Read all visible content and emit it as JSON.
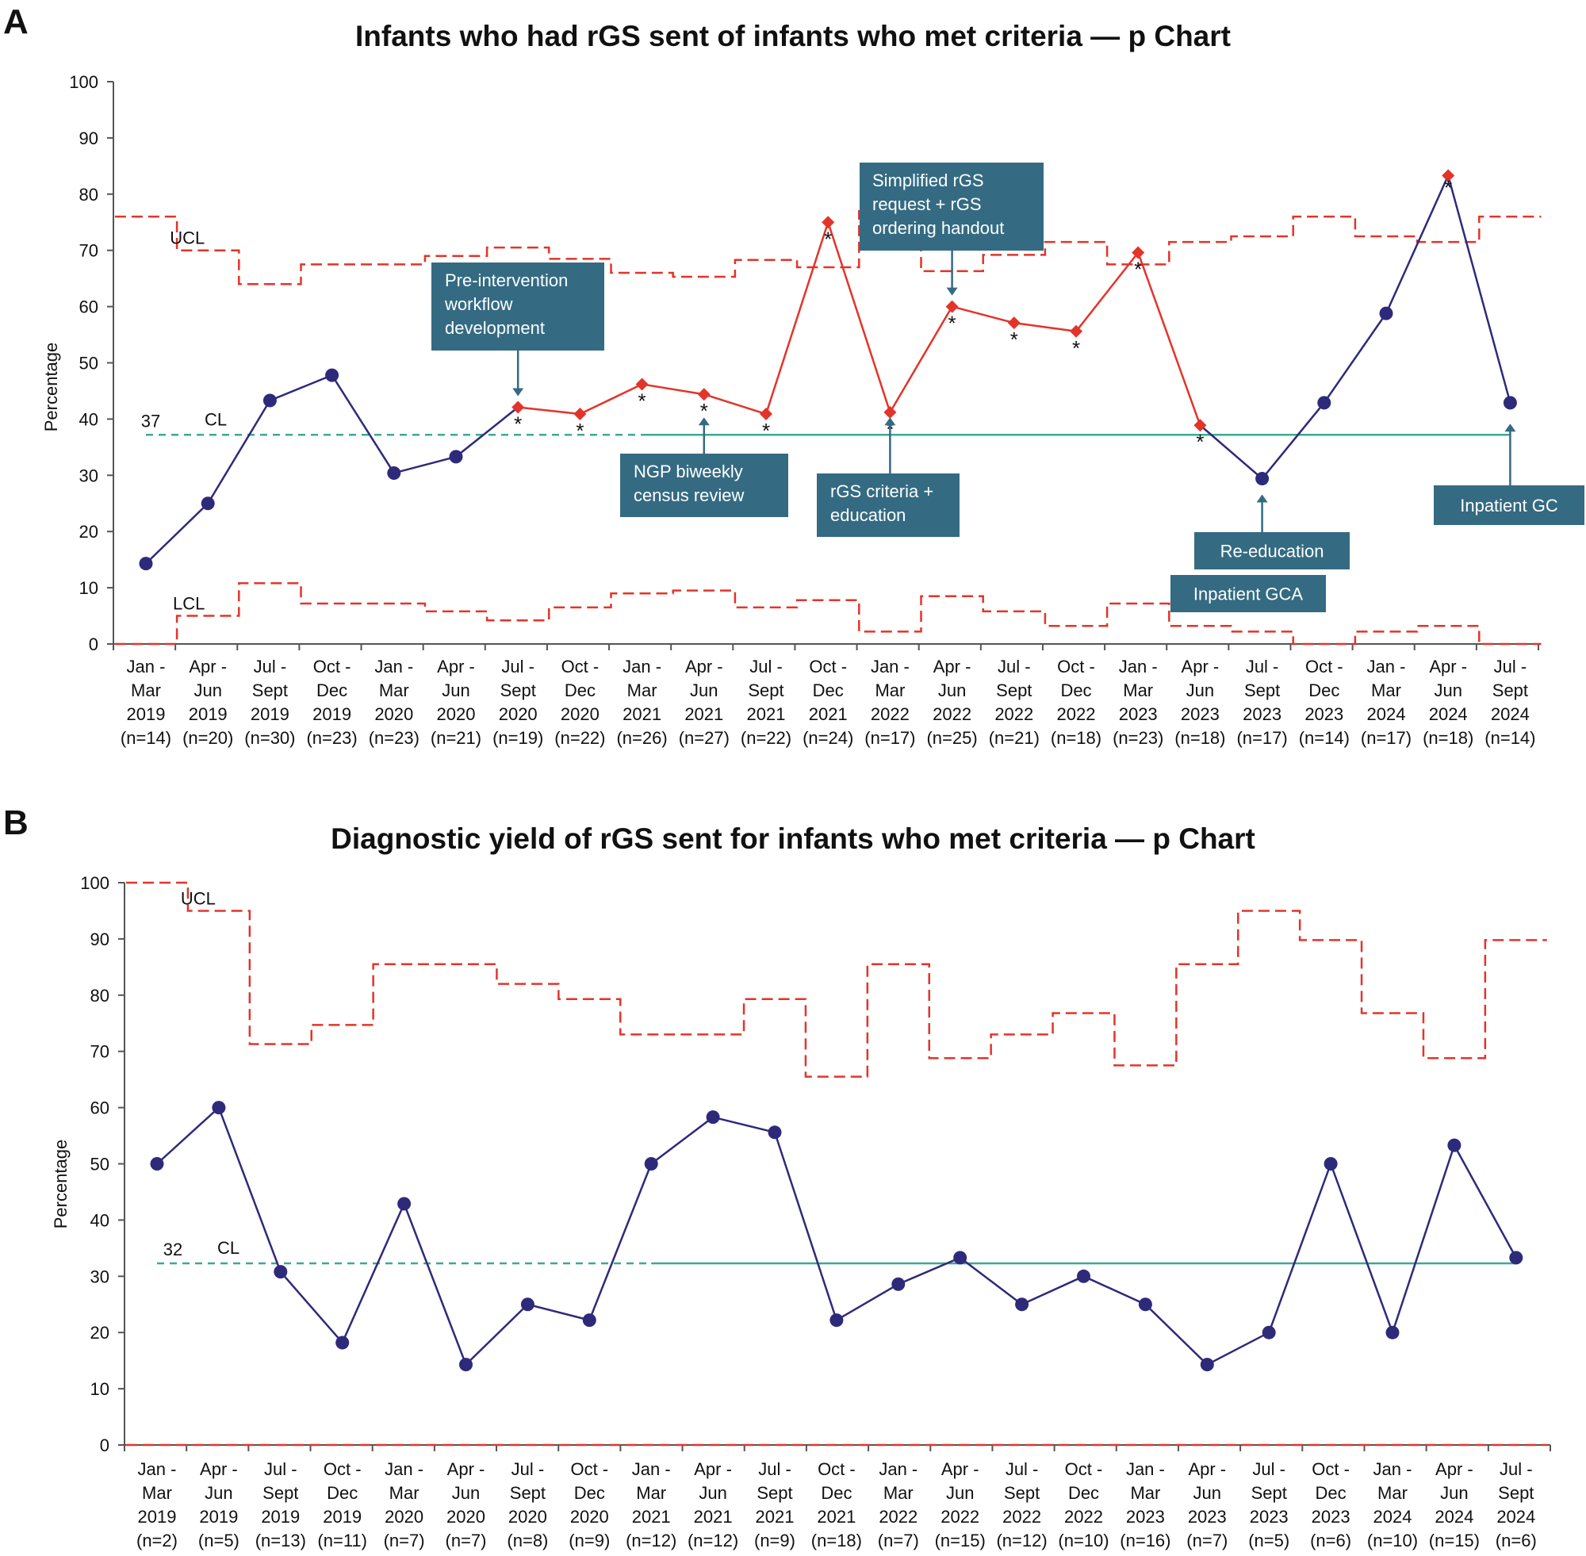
{
  "chart_data": [
    {
      "panel": "A",
      "type": "line",
      "title": "Infants who had rGS sent of infants who met criteria — p Chart",
      "ylabel": "Percentage",
      "ylim": [
        0,
        100
      ],
      "yticks": [
        0,
        10,
        20,
        30,
        40,
        50,
        60,
        70,
        80,
        90,
        100
      ],
      "categories": [
        [
          "Jan -",
          "Mar",
          "2019",
          "(n=14)"
        ],
        [
          "Apr -",
          "Jun",
          "2019",
          "(n=20)"
        ],
        [
          "Jul -",
          "Sept",
          "2019",
          "(n=30)"
        ],
        [
          "Oct -",
          "Dec",
          "2019",
          "(n=23)"
        ],
        [
          "Jan -",
          "Mar",
          "2020",
          "(n=23)"
        ],
        [
          "Apr -",
          "Jun",
          "2020",
          "(n=21)"
        ],
        [
          "Jul -",
          "Sept",
          "2020",
          "(n=19)"
        ],
        [
          "Oct -",
          "Dec",
          "2020",
          "(n=22)"
        ],
        [
          "Jan -",
          "Mar",
          "2021",
          "(n=26)"
        ],
        [
          "Apr -",
          "Jun",
          "2021",
          "(n=27)"
        ],
        [
          "Jul -",
          "Sept",
          "2021",
          "(n=22)"
        ],
        [
          "Oct -",
          "Dec",
          "2021",
          "(n=24)"
        ],
        [
          "Jan -",
          "Mar",
          "2022",
          "(n=17)"
        ],
        [
          "Apr -",
          "Jun",
          "2022",
          "(n=25)"
        ],
        [
          "Jul -",
          "Sept",
          "2022",
          "(n=21)"
        ],
        [
          "Oct -",
          "Dec",
          "2022",
          "(n=18)"
        ],
        [
          "Jan -",
          "Mar",
          "2023",
          "(n=23)"
        ],
        [
          "Apr -",
          "Jun",
          "2023",
          "(n=18)"
        ],
        [
          "Jul -",
          "Sept",
          "2023",
          "(n=17)"
        ],
        [
          "Oct -",
          "Dec",
          "2023",
          "(n=14)"
        ],
        [
          "Jan -",
          "Mar",
          "2024",
          "(n=17)"
        ],
        [
          "Apr -",
          "Jun",
          "2024",
          "(n=18)"
        ],
        [
          "Jul -",
          "Sept",
          "2024",
          "(n=14)"
        ]
      ],
      "values": [
        14.3,
        25.0,
        43.3,
        47.8,
        30.4,
        33.3,
        42.1,
        40.9,
        46.2,
        44.4,
        40.9,
        75.0,
        41.2,
        60.0,
        57.1,
        55.6,
        69.6,
        38.9,
        29.4,
        42.9,
        58.8,
        83.3,
        42.9
      ],
      "signal_flags": [
        false,
        false,
        false,
        false,
        false,
        false,
        true,
        true,
        true,
        true,
        true,
        true,
        true,
        true,
        true,
        true,
        true,
        true,
        false,
        false,
        false,
        true,
        false
      ],
      "signal_stars": [
        false,
        false,
        false,
        false,
        false,
        false,
        true,
        true,
        true,
        true,
        true,
        true,
        true,
        true,
        true,
        true,
        true,
        true,
        false,
        false,
        false,
        true,
        false
      ],
      "ucl": [
        76,
        70,
        64,
        67.5,
        67.5,
        69,
        70.5,
        68.5,
        66,
        65.3,
        68.3,
        67,
        77,
        66.3,
        69.2,
        71.5,
        67.5,
        71.5,
        72.5,
        76,
        72.5,
        71.5,
        76
      ],
      "lcl": [
        0,
        5,
        10.8,
        7.2,
        7.2,
        5.8,
        4.2,
        6.5,
        9,
        9.5,
        6.5,
        7.8,
        2.2,
        8.5,
        5.8,
        3.2,
        7.2,
        3.2,
        2.2,
        0,
        2.2,
        3.2,
        0
      ],
      "center_line": 37.2,
      "center_line_shift_index": 8,
      "labels": {
        "ucl": "UCL",
        "lcl": "LCL",
        "cl": "CL",
        "cl_value": "37"
      },
      "annotations": [
        {
          "id": "pre-intervention",
          "lines": [
            "Pre-intervention",
            "workflow",
            "development"
          ],
          "target_index": 6,
          "arrow_dir": "down"
        },
        {
          "id": "ngp-census",
          "lines": [
            "NGP biweekly",
            "census review"
          ],
          "target_index": 9,
          "arrow_dir": "up"
        },
        {
          "id": "rgs-criteria",
          "lines": [
            "rGS criteria +",
            "education"
          ],
          "target_index": 12,
          "arrow_dir": "up"
        },
        {
          "id": "simplified-rgs",
          "lines": [
            "Simplified rGS",
            "request + rGS",
            "ordering handout"
          ],
          "target_index": 13,
          "arrow_dir": "down"
        },
        {
          "id": "re-education",
          "lines": [
            "Re-education"
          ],
          "target_index": 18,
          "arrow_dir": "up"
        },
        {
          "id": "inpatient-gca",
          "lines": [
            "Inpatient GCA"
          ],
          "target_index": null,
          "arrow_dir": "none"
        },
        {
          "id": "inpatient-gc",
          "lines": [
            "Inpatient GC"
          ],
          "target_index": 22,
          "arrow_dir": "up"
        }
      ]
    },
    {
      "panel": "B",
      "type": "line",
      "title": "Diagnostic yield of rGS sent for infants who met criteria — p Chart",
      "ylabel": "Percentage",
      "ylim": [
        0,
        100
      ],
      "yticks": [
        0,
        10,
        20,
        30,
        40,
        50,
        60,
        70,
        80,
        90,
        100
      ],
      "categories": [
        [
          "Jan -",
          "Mar",
          "2019",
          "(n=2)"
        ],
        [
          "Apr -",
          "Jun",
          "2019",
          "(n=5)"
        ],
        [
          "Jul -",
          "Sept",
          "2019",
          "(n=13)"
        ],
        [
          "Oct -",
          "Dec",
          "2019",
          "(n=11)"
        ],
        [
          "Jan -",
          "Mar",
          "2020",
          "(n=7)"
        ],
        [
          "Apr -",
          "Jun",
          "2020",
          "(n=7)"
        ],
        [
          "Jul -",
          "Sept",
          "2020",
          "(n=8)"
        ],
        [
          "Oct -",
          "Dec",
          "2020",
          "(n=9)"
        ],
        [
          "Jan -",
          "Mar",
          "2021",
          "(n=12)"
        ],
        [
          "Apr -",
          "Jun",
          "2021",
          "(n=12)"
        ],
        [
          "Jul -",
          "Sept",
          "2021",
          "(n=9)"
        ],
        [
          "Oct -",
          "Dec",
          "2021",
          "(n=18)"
        ],
        [
          "Jan -",
          "Mar",
          "2022",
          "(n=7)"
        ],
        [
          "Apr -",
          "Jun",
          "2022",
          "(n=15)"
        ],
        [
          "Jul -",
          "Sept",
          "2022",
          "(n=12)"
        ],
        [
          "Oct -",
          "Dec",
          "2022",
          "(n=10)"
        ],
        [
          "Jan -",
          "Mar",
          "2023",
          "(n=16)"
        ],
        [
          "Apr -",
          "Jun",
          "2023",
          "(n=7)"
        ],
        [
          "Jul -",
          "Sept",
          "2023",
          "(n=5)"
        ],
        [
          "Oct -",
          "Dec",
          "2023",
          "(n=6)"
        ],
        [
          "Jan -",
          "Mar",
          "2024",
          "(n=10)"
        ],
        [
          "Apr -",
          "Jun",
          "2024",
          "(n=15)"
        ],
        [
          "Jul -",
          "Sept",
          "2024",
          "(n=6)"
        ]
      ],
      "values": [
        50.0,
        60.0,
        30.8,
        18.2,
        42.9,
        14.3,
        25.0,
        22.2,
        50.0,
        58.3,
        55.6,
        22.2,
        28.6,
        33.3,
        25.0,
        30.0,
        25.0,
        14.3,
        20.0,
        50.0,
        20.0,
        53.3,
        33.3
      ],
      "ucl": [
        100,
        95,
        71.3,
        74.7,
        85.5,
        85.5,
        82,
        79.3,
        73,
        73,
        79.3,
        65.5,
        85.5,
        68.8,
        73,
        76.8,
        67.5,
        85.5,
        95,
        89.8,
        76.8,
        68.8,
        89.8
      ],
      "lcl": [
        0,
        0,
        0,
        0,
        0,
        0,
        0,
        0,
        0,
        0,
        0,
        0,
        0,
        0,
        0,
        0,
        0,
        0,
        0,
        0,
        0,
        0,
        0
      ],
      "center_line": 32.3,
      "center_line_shift_index": 8,
      "labels": {
        "ucl": "UCL",
        "cl": "CL",
        "cl_value": "32"
      }
    }
  ],
  "colors": {
    "baseline_series": "#2e2a7a",
    "signal_series": "#e3342a",
    "control_limits": "#e3342a",
    "center_line": "#3ea896",
    "annotation_box": "#346b82",
    "annotation_text": "#ffffff",
    "axis": "#555555"
  }
}
